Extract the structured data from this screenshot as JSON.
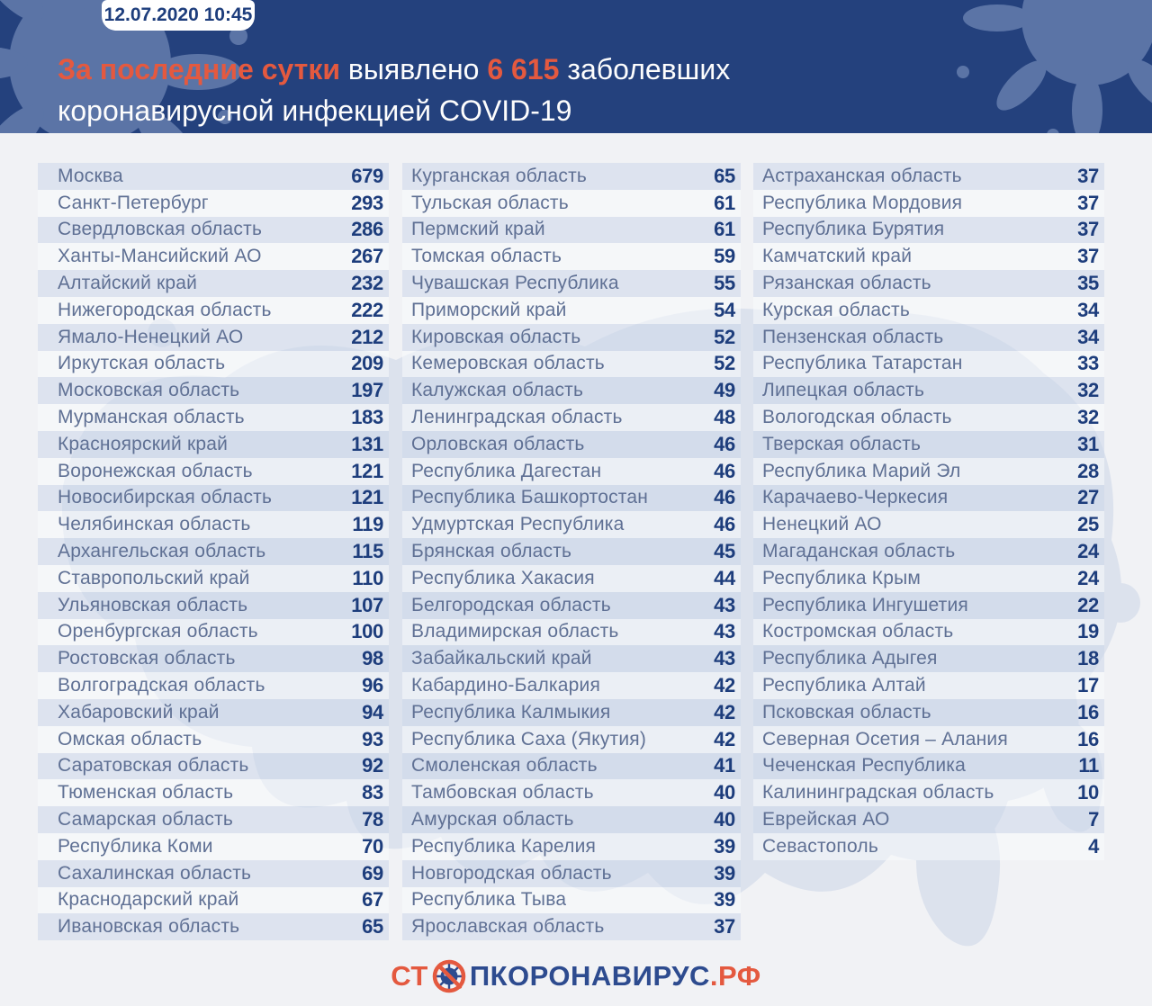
{
  "header": {
    "badge": "12.07.2020 10:45",
    "title": {
      "seg1": "За последние сутки",
      "seg2": " выявлено ",
      "seg3": "6 615",
      "seg4": " заболевших",
      "line2": "коронавирусной инфекцией COVID-19"
    }
  },
  "icons": {
    "header_left": "virus-splat-icon",
    "header_right": "virus-splat-icon",
    "footer": "no-virus-icon"
  },
  "colors": {
    "header_bg": "#24417d",
    "accent": "#e4593f",
    "splat": "#5b74a6",
    "region_text": "#5f7094",
    "number_text": "#1d3d7c",
    "logo_blue": "#2d4b8f",
    "stripe": "#cdd7e9",
    "page_bg": "#f1f2f5",
    "map": "#d8dfec"
  },
  "footer": {
    "logo_prefix": "СТ",
    "logo_main": "ПКОРОНАВИРУС",
    "logo_suffix": ".РФ"
  },
  "chart_data": {
    "type": "table",
    "title": "За последние сутки выявлено 6 615 заболевших коронавирусной инфекцией COVID-19",
    "timestamp": "12.07.2020 10:45",
    "total_new_cases": 6615,
    "columns": [
      {
        "rows": [
          {
            "name": "Москва",
            "value": 679
          },
          {
            "name": "Санкт-Петербург",
            "value": 293
          },
          {
            "name": "Свердловская область",
            "value": 286
          },
          {
            "name": "Ханты-Мансийский АО",
            "value": 267
          },
          {
            "name": "Алтайский край",
            "value": 232
          },
          {
            "name": "Нижегородская область",
            "value": 222
          },
          {
            "name": "Ямало-Ненецкий АО",
            "value": 212
          },
          {
            "name": "Иркутская область",
            "value": 209
          },
          {
            "name": "Московская область",
            "value": 197
          },
          {
            "name": "Мурманская область",
            "value": 183
          },
          {
            "name": "Красноярский край",
            "value": 131
          },
          {
            "name": "Воронежская область",
            "value": 121
          },
          {
            "name": "Новосибирская область",
            "value": 121
          },
          {
            "name": "Челябинская область",
            "value": 119
          },
          {
            "name": "Архангельская область",
            "value": 115
          },
          {
            "name": "Ставропольский край",
            "value": 110
          },
          {
            "name": "Ульяновская область",
            "value": 107
          },
          {
            "name": "Оренбургская область",
            "value": 100
          },
          {
            "name": "Ростовская область",
            "value": 98
          },
          {
            "name": "Волгоградская область",
            "value": 96
          },
          {
            "name": "Хабаровский край",
            "value": 94
          },
          {
            "name": "Омская область",
            "value": 93
          },
          {
            "name": "Саратовская область",
            "value": 92
          },
          {
            "name": "Тюменская область",
            "value": 83
          },
          {
            "name": "Самарская область",
            "value": 78
          },
          {
            "name": "Республика Коми",
            "value": 70
          },
          {
            "name": "Сахалинская область",
            "value": 69
          },
          {
            "name": "Краснодарский край",
            "value": 67
          },
          {
            "name": "Ивановская область",
            "value": 65
          }
        ]
      },
      {
        "rows": [
          {
            "name": "Курганская область",
            "value": 65
          },
          {
            "name": "Тульская область",
            "value": 61
          },
          {
            "name": "Пермский край",
            "value": 61
          },
          {
            "name": "Томская область",
            "value": 59
          },
          {
            "name": "Чувашская Республика",
            "value": 55
          },
          {
            "name": "Приморский край",
            "value": 54
          },
          {
            "name": "Кировская область",
            "value": 52
          },
          {
            "name": "Кемеровская область",
            "value": 52
          },
          {
            "name": "Калужская область",
            "value": 49
          },
          {
            "name": "Ленинградская область",
            "value": 48
          },
          {
            "name": "Орловская область",
            "value": 46
          },
          {
            "name": "Республика Дагестан",
            "value": 46
          },
          {
            "name": "Республика Башкортостан",
            "value": 46
          },
          {
            "name": "Удмуртская Республика",
            "value": 46
          },
          {
            "name": "Брянская область",
            "value": 45
          },
          {
            "name": "Республика Хакасия",
            "value": 44
          },
          {
            "name": "Белгородская область",
            "value": 43
          },
          {
            "name": "Владимирская область",
            "value": 43
          },
          {
            "name": "Забайкальский край",
            "value": 43
          },
          {
            "name": "Кабардино-Балкария",
            "value": 42
          },
          {
            "name": "Республика Калмыкия",
            "value": 42
          },
          {
            "name": "Республика Саха (Якутия)",
            "value": 42
          },
          {
            "name": "Смоленская область",
            "value": 41
          },
          {
            "name": "Тамбовская область",
            "value": 40
          },
          {
            "name": "Амурская область",
            "value": 40
          },
          {
            "name": "Республика Карелия",
            "value": 39
          },
          {
            "name": "Новгородская область",
            "value": 39
          },
          {
            "name": "Республика Тыва",
            "value": 39
          },
          {
            "name": "Ярославская область",
            "value": 37
          }
        ]
      },
      {
        "rows": [
          {
            "name": "Астраханская область",
            "value": 37
          },
          {
            "name": "Республика Мордовия",
            "value": 37
          },
          {
            "name": "Республика Бурятия",
            "value": 37
          },
          {
            "name": "Камчатский край",
            "value": 37
          },
          {
            "name": "Рязанская область",
            "value": 35
          },
          {
            "name": "Курская область",
            "value": 34
          },
          {
            "name": "Пензенская область",
            "value": 34
          },
          {
            "name": "Республика Татарстан",
            "value": 33
          },
          {
            "name": "Липецкая область",
            "value": 32
          },
          {
            "name": "Вологодская область",
            "value": 32
          },
          {
            "name": "Тверская область",
            "value": 31
          },
          {
            "name": "Республика Марий Эл",
            "value": 28
          },
          {
            "name": "Карачаево-Черкесия",
            "value": 27
          },
          {
            "name": "Ненецкий АО",
            "value": 25
          },
          {
            "name": "Магаданская область",
            "value": 24
          },
          {
            "name": "Республика Крым",
            "value": 24
          },
          {
            "name": "Республика Ингушетия",
            "value": 22
          },
          {
            "name": "Костромская область",
            "value": 19
          },
          {
            "name": "Республика Адыгея",
            "value": 18
          },
          {
            "name": "Республика Алтай",
            "value": 17
          },
          {
            "name": "Псковская область",
            "value": 16
          },
          {
            "name": "Северная Осетия – Алания",
            "value": 16
          },
          {
            "name": "Чеченская Республика",
            "value": 11
          },
          {
            "name": "Калининградская область",
            "value": 10
          },
          {
            "name": "Еврейская АО",
            "value": 7
          },
          {
            "name": "Севастополь",
            "value": 4
          }
        ]
      }
    ]
  }
}
